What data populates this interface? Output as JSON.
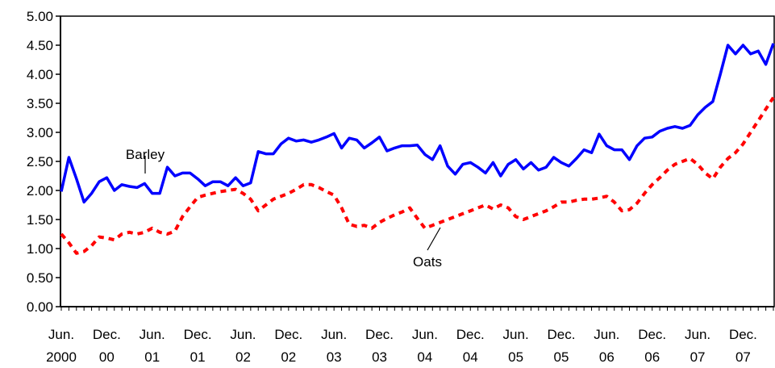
{
  "chart_data": {
    "type": "line",
    "categories": [
      "Jun. 2000",
      null,
      null,
      null,
      null,
      null,
      "Dec. 00",
      null,
      null,
      null,
      null,
      null,
      "Jun. 01",
      null,
      null,
      null,
      null,
      null,
      "Dec. 01",
      null,
      null,
      null,
      null,
      null,
      "Jun. 02",
      null,
      null,
      null,
      null,
      null,
      "Dec. 02",
      null,
      null,
      null,
      null,
      null,
      "Jun. 03",
      null,
      null,
      null,
      null,
      null,
      "Dec. 03",
      null,
      null,
      null,
      null,
      null,
      "Jun. 04",
      null,
      null,
      null,
      null,
      null,
      "Dec. 04",
      null,
      null,
      null,
      null,
      null,
      "Jun. 05",
      null,
      null,
      null,
      null,
      null,
      "Dec. 05",
      null,
      null,
      null,
      null,
      null,
      "Jun. 06",
      null,
      null,
      null,
      null,
      null,
      "Dec. 06",
      null,
      null,
      null,
      null,
      null,
      "Jun. 07",
      null,
      null,
      null,
      null,
      null,
      "Dec. 07",
      null,
      null,
      null,
      null
    ],
    "series": [
      {
        "name": "Barley",
        "color": "#0000ff",
        "dashed": false,
        "values": [
          1.98,
          2.57,
          2.2,
          1.8,
          1.95,
          2.15,
          2.22,
          2.0,
          2.1,
          2.07,
          2.05,
          2.12,
          1.95,
          1.95,
          2.4,
          2.25,
          2.3,
          2.3,
          2.2,
          2.08,
          2.15,
          2.15,
          2.08,
          2.22,
          2.08,
          2.13,
          2.67,
          2.63,
          2.63,
          2.8,
          2.9,
          2.85,
          2.87,
          2.83,
          2.87,
          2.92,
          2.98,
          2.73,
          2.9,
          2.87,
          2.73,
          2.82,
          2.92,
          2.68,
          2.73,
          2.77,
          2.77,
          2.78,
          2.62,
          2.53,
          2.77,
          2.42,
          2.28,
          2.45,
          2.48,
          2.4,
          2.3,
          2.48,
          2.25,
          2.45,
          2.53,
          2.37,
          2.48,
          2.35,
          2.4,
          2.57,
          2.48,
          2.42,
          2.55,
          2.7,
          2.65,
          2.97,
          2.77,
          2.7,
          2.7,
          2.53,
          2.77,
          2.9,
          2.92,
          3.02,
          3.07,
          3.1,
          3.07,
          3.12,
          3.3,
          3.43,
          3.53,
          4.0,
          4.5,
          4.35,
          4.5,
          4.35,
          4.4,
          4.17,
          4.53
        ]
      },
      {
        "name": "Oats",
        "color": "#ff0000",
        "dashed": true,
        "values": [
          1.25,
          1.1,
          0.92,
          0.95,
          1.05,
          1.2,
          1.18,
          1.15,
          1.25,
          1.28,
          1.25,
          1.28,
          1.35,
          1.28,
          1.25,
          1.3,
          1.55,
          1.72,
          1.88,
          1.92,
          1.95,
          1.98,
          2.0,
          2.02,
          1.95,
          1.85,
          1.65,
          1.75,
          1.85,
          1.9,
          1.95,
          2.02,
          2.1,
          2.1,
          2.05,
          1.98,
          1.92,
          1.7,
          1.42,
          1.38,
          1.4,
          1.35,
          1.45,
          1.52,
          1.58,
          1.63,
          1.7,
          1.52,
          1.35,
          1.4,
          1.45,
          1.5,
          1.55,
          1.6,
          1.65,
          1.7,
          1.75,
          1.68,
          1.75,
          1.7,
          1.55,
          1.5,
          1.55,
          1.6,
          1.65,
          1.72,
          1.8,
          1.8,
          1.83,
          1.85,
          1.85,
          1.87,
          1.9,
          1.8,
          1.65,
          1.67,
          1.78,
          1.95,
          2.1,
          2.22,
          2.35,
          2.45,
          2.5,
          2.55,
          2.45,
          2.3,
          2.2,
          2.4,
          2.55,
          2.65,
          2.8,
          3.0,
          3.2,
          3.4,
          3.6
        ]
      }
    ],
    "ylim": [
      0,
      5
    ],
    "yticks": [
      {
        "value": 0,
        "label": "0.00"
      },
      {
        "value": 0.5,
        "label": "0.50"
      },
      {
        "value": 1,
        "label": "1.00"
      },
      {
        "value": 1.5,
        "label": "1.50"
      },
      {
        "value": 2,
        "label": "2.00"
      },
      {
        "value": 2.5,
        "label": "2.50"
      },
      {
        "value": 3,
        "label": "3.00"
      },
      {
        "value": 3.5,
        "label": "3.50"
      },
      {
        "value": 4,
        "label": "4.00"
      },
      {
        "value": 4.5,
        "label": "4.50"
      },
      {
        "value": 5,
        "label": "5.00"
      }
    ],
    "grid": false
  }
}
